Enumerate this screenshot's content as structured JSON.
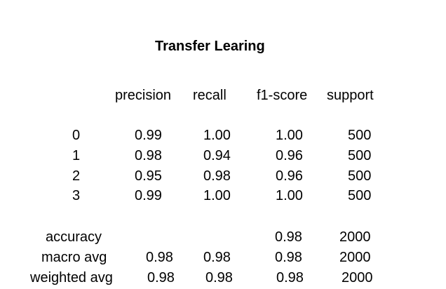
{
  "title": "Transfer Learing",
  "headers": [
    "precision",
    "recall",
    "f1-score",
    "support"
  ],
  "class_rows": [
    {
      "label": "0",
      "precision": "0.99",
      "recall": "1.00",
      "f1": "1.00",
      "support": "500"
    },
    {
      "label": "1",
      "precision": "0.98",
      "recall": "0.94",
      "f1": "0.96",
      "support": "500"
    },
    {
      "label": "2",
      "precision": "0.95",
      "recall": "0.98",
      "f1": "0.96",
      "support": "500"
    },
    {
      "label": "3",
      "precision": "0.99",
      "recall": "1.00",
      "f1": "1.00",
      "support": "500"
    }
  ],
  "accuracy": {
    "label": "accuracy",
    "f1": "0.98",
    "support": "2000"
  },
  "macro_avg": {
    "label": "macro avg",
    "precision": "0.98",
    "recall": "0.98",
    "f1": "0.98",
    "support": "2000"
  },
  "weighted_avg": {
    "label": "weighted avg",
    "precision": "0.98",
    "recall": "0.98",
    "f1": "0.98",
    "support": "2000"
  }
}
